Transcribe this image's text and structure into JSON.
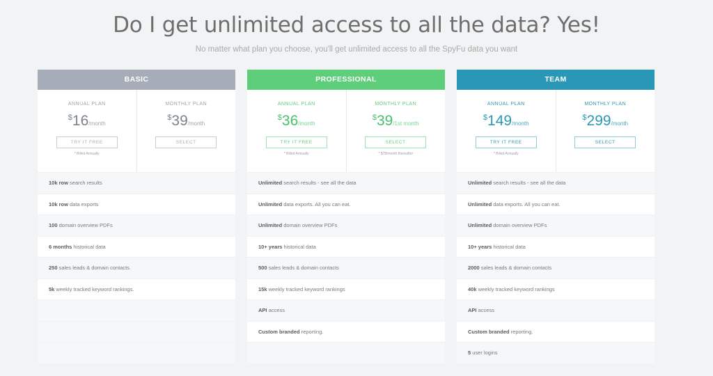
{
  "header": {
    "title": "Do I get unlimited access to all the data? Yes!",
    "subtitle": "No matter what plan you choose, you'll get unlimited access to all the SpyFu data you want"
  },
  "colors": {
    "basic": "#a7adb8",
    "professional": "#5ece7b",
    "team": "#2b97b6"
  },
  "plans": [
    {
      "name": "BASIC",
      "annual": {
        "term": "ANNUAL PLAN",
        "currency": "$",
        "price": "16",
        "per": "/month",
        "button": "TRY IT FREE",
        "note": "* Billed Annually"
      },
      "monthly": {
        "term": "MONTHLY PLAN",
        "currency": "$",
        "price": "39",
        "per": "/month",
        "button": "SELECT",
        "note": ""
      },
      "features": [
        {
          "bold": "10k row",
          "text": " search results"
        },
        {
          "bold": "10k row",
          "text": " data exports"
        },
        {
          "bold": "100",
          "text": " domain overview PDFs"
        },
        {
          "bold": "6 months",
          "text": " historical data"
        },
        {
          "bold": "250",
          "text": " sales leads & domain contacts."
        },
        {
          "bold": "5k",
          "text": " weekly tracked keyword rankings."
        },
        {
          "bold": "",
          "text": ""
        },
        {
          "bold": "",
          "text": ""
        },
        {
          "bold": "",
          "text": ""
        }
      ]
    },
    {
      "name": "PROFESSIONAL",
      "annual": {
        "term": "ANNUAL PLAN",
        "currency": "$",
        "price": "36",
        "per": "/month",
        "button": "TRY IT FREE",
        "note": "* Billed Annually"
      },
      "monthly": {
        "term": "MONTHLY PLAN",
        "currency": "$",
        "price": "39",
        "per": "/1st month",
        "button": "SELECT",
        "note": "* $78/month thereafter"
      },
      "features": [
        {
          "bold": "Unlimited",
          "text": " search results - see all the data"
        },
        {
          "bold": "Unlimited",
          "text": " data exports. All you can eat."
        },
        {
          "bold": "Unlimited",
          "text": " domain overview PDFs"
        },
        {
          "bold": "10+ years",
          "text": " historical data"
        },
        {
          "bold": "500",
          "text": " sales leads & domain contacts"
        },
        {
          "bold": "15k",
          "text": " weekly tracked keyword rankings"
        },
        {
          "bold": "API",
          "text": " access"
        },
        {
          "bold": "Custom branded",
          "text": " reporting."
        },
        {
          "bold": "",
          "text": ""
        }
      ]
    },
    {
      "name": "TEAM",
      "annual": {
        "term": "ANNUAL PLAN",
        "currency": "$",
        "price": "149",
        "per": "/month",
        "button": "TRY IT FREE",
        "note": "* Billed Annually"
      },
      "monthly": {
        "term": "MONTHLY PLAN",
        "currency": "$",
        "price": "299",
        "per": "/month",
        "button": "SELECT",
        "note": ""
      },
      "features": [
        {
          "bold": "Unlimited",
          "text": " search results - see all the data"
        },
        {
          "bold": "Unlimited",
          "text": " data exports. All you can eat."
        },
        {
          "bold": "Unlimited",
          "text": " domain overview PDFs"
        },
        {
          "bold": "10+ years",
          "text": " historical data"
        },
        {
          "bold": "2000",
          "text": " sales leads & domain contacts"
        },
        {
          "bold": "40k",
          "text": " weekly tracked keyword rankings"
        },
        {
          "bold": "API",
          "text": " access"
        },
        {
          "bold": "Custom branded",
          "text": " reporting."
        },
        {
          "bold": "5",
          "text": " user logins"
        }
      ]
    }
  ]
}
